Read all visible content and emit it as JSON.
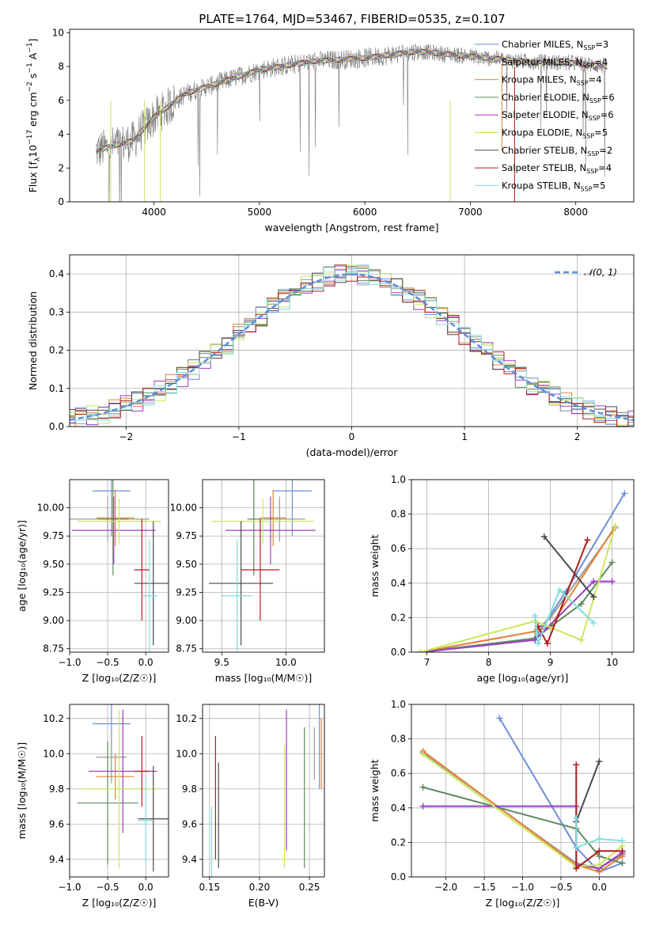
{
  "figure_title": "PLATE=1764, MJD=53467, FIBERID=0535, z=0.107",
  "models": [
    {
      "name": "Chabrier MILES",
      "nssp": "3",
      "color": "#6b8fd8"
    },
    {
      "name": "Salpeter MILES",
      "nssp": "4",
      "color": "#9b9b9b"
    },
    {
      "name": "Kroupa MILES",
      "nssp": "4",
      "color": "#e8823a"
    },
    {
      "name": "Chabrier ELODIE",
      "nssp": "6",
      "color": "#5e8a5e"
    },
    {
      "name": "Salpeter ELODIE",
      "nssp": "6",
      "color": "#9b3fc0"
    },
    {
      "name": "Kroupa ELODIE",
      "nssp": "5",
      "color": "#c9e85a"
    },
    {
      "name": "Chabrier STELIB",
      "nssp": "2",
      "color": "#4a4a4a"
    },
    {
      "name": "Salpeter STELIB",
      "nssp": "4",
      "color": "#b01d1d"
    },
    {
      "name": "Kroupa STELIB",
      "nssp": "5",
      "color": "#7fdede"
    }
  ],
  "legend_template": {
    "ssp_symbol": "N",
    "ssp_subscript": "SSP",
    "eq": "="
  },
  "chart_data": [
    {
      "id": "spectrum",
      "type": "line",
      "xlabel": "wavelength [Angstrom, rest frame]",
      "ylabel_main": "Flux [f",
      "ylabel_sub": "λ",
      "ylabel_rest": "10",
      "ylabel_exp1": "−17",
      "ylabel_mid": " erg cm",
      "ylabel_exp2": "−2",
      "ylabel_s": " s",
      "ylabel_exp3": "−1",
      "ylabel_a": " A",
      "ylabel_exp4": "−1",
      "ylabel_end": "]",
      "xlim": [
        3200,
        8550
      ],
      "ylim": [
        0,
        10.2
      ],
      "xticks": [
        "4000",
        "5000",
        "6000",
        "7000",
        "8000"
      ],
      "yticks": [
        "0",
        "2",
        "4",
        "6",
        "8",
        "10"
      ],
      "continuum": {
        "x": [
          3450,
          3600,
          3800,
          4000,
          4300,
          4700,
          5000,
          5500,
          6000,
          6500,
          7000,
          7500,
          8000,
          8300
        ],
        "y": [
          3.0,
          3.3,
          3.6,
          5.0,
          6.4,
          7.2,
          7.8,
          8.3,
          8.5,
          8.9,
          8.6,
          8.3,
          8.2,
          8.0
        ]
      }
    },
    {
      "id": "residuals",
      "type": "line",
      "xlabel": "(data-model)/error",
      "ylabel": "Normed distribution",
      "xlim": [
        -2.5,
        2.5
      ],
      "ylim": [
        0,
        0.45
      ],
      "xticks": [
        "−2",
        "−1",
        "0",
        "1",
        "2"
      ],
      "yticks": [
        "0.0",
        "0.1",
        "0.2",
        "0.3",
        "0.4"
      ],
      "grid": true,
      "reference_curve": "𝒩(0, 1)",
      "reference_color": "#5b8fd8"
    },
    {
      "id": "age-vs-Z",
      "type": "scatter",
      "xlabel": "Z [log₁₀(Z/Z☉)]",
      "ylabel": "age  [log₁₀(age/yr)]",
      "xlim": [
        -1.0,
        0.3
      ],
      "ylim": [
        8.72,
        10.25
      ],
      "xticks": [
        "−1.0",
        "−0.5",
        "0.0"
      ],
      "yticks": [
        "8.75",
        "9.00",
        "9.25",
        "9.50",
        "9.75",
        "10.00"
      ],
      "grid": true,
      "errorbars": [
        {
          "model": 0,
          "x": -0.45,
          "xerr": 0.25,
          "y": 10.15,
          "yerr": 0.4
        },
        {
          "model": 1,
          "x": -0.5,
          "xerr": 0.55,
          "y": 9.9,
          "yerr": 0.2
        },
        {
          "model": 2,
          "x": -0.4,
          "xerr": 0.25,
          "y": 9.91,
          "yerr": 0.25
        },
        {
          "model": 3,
          "x": -0.43,
          "xerr": 0.2,
          "y": 9.9,
          "yerr": 0.5
        },
        {
          "model": 4,
          "x": -0.42,
          "xerr": 0.55,
          "y": 9.8,
          "yerr": 0.3
        },
        {
          "model": 5,
          "x": -0.35,
          "xerr": 0.55,
          "y": 9.88,
          "yerr": 0.2
        },
        {
          "model": 6,
          "x": 0.1,
          "xerr": 0.25,
          "y": 9.33,
          "yerr": 0.55
        },
        {
          "model": 7,
          "x": -0.05,
          "xerr": 0.1,
          "y": 9.45,
          "yerr": 0.45
        },
        {
          "model": 8,
          "x": 0.05,
          "xerr": 0.1,
          "y": 9.22,
          "yerr": 0.5
        }
      ]
    },
    {
      "id": "age-vs-mass",
      "type": "scatter",
      "xlabel": "mass [log₁₀(M/M☉)]",
      "xlim": [
        9.35,
        10.3
      ],
      "ylim": [
        8.72,
        10.25
      ],
      "xticks": [
        "9.5",
        "10.0"
      ],
      "yticks": [
        "8.75",
        "9.00",
        "9.25",
        "9.50",
        "9.75",
        "10.00"
      ],
      "grid": true,
      "errorbars": [
        {
          "model": 0,
          "x": 10.05,
          "xerr": 0.15,
          "y": 10.15,
          "yerr": 0.4
        },
        {
          "model": 1,
          "x": 9.95,
          "xerr": 0.2,
          "y": 9.9,
          "yerr": 0.2
        },
        {
          "model": 2,
          "x": 9.9,
          "xerr": 0.1,
          "y": 9.91,
          "yerr": 0.25
        },
        {
          "model": 3,
          "x": 9.75,
          "xerr": 0.05,
          "y": 9.9,
          "yerr": 0.5
        },
        {
          "model": 4,
          "x": 9.88,
          "xerr": 0.35,
          "y": 9.8,
          "yerr": 0.3
        },
        {
          "model": 5,
          "x": 9.82,
          "xerr": 0.4,
          "y": 9.88,
          "yerr": 0.2
        },
        {
          "model": 6,
          "x": 9.65,
          "xerr": 0.25,
          "y": 9.33,
          "yerr": 0.55
        },
        {
          "model": 7,
          "x": 9.8,
          "xerr": 0.15,
          "y": 9.45,
          "yerr": 0.45
        },
        {
          "model": 8,
          "x": 9.62,
          "xerr": 0.12,
          "y": 9.22,
          "yerr": 0.5
        }
      ]
    },
    {
      "id": "weight-vs-age",
      "type": "line",
      "xlabel": "age  [log₁₀(age/yr)]",
      "ylabel": "mass weight",
      "xlim": [
        6.75,
        10.35
      ],
      "ylim": [
        0,
        1.0
      ],
      "xticks": [
        "7",
        "8",
        "9",
        "10"
      ],
      "yticks": [
        "0.0",
        "0.2",
        "0.4",
        "0.6",
        "0.8",
        "1.0"
      ],
      "grid": true,
      "series": [
        {
          "model": 0,
          "x": [
            6.9,
            8.75,
            9.25,
            10.2
          ],
          "y": [
            0.0,
            0.08,
            0.35,
            0.92
          ]
        },
        {
          "model": 1,
          "x": [
            6.9,
            8.75,
            9.0,
            10.05
          ],
          "y": [
            0.0,
            0.12,
            0.2,
            0.72
          ]
        },
        {
          "model": 2,
          "x": [
            6.9,
            8.75,
            9.0,
            10.05
          ],
          "y": [
            0.0,
            0.12,
            0.15,
            0.73
          ]
        },
        {
          "model": 3,
          "x": [
            6.9,
            8.75,
            9.5,
            10.0
          ],
          "y": [
            0.0,
            0.08,
            0.28,
            0.52
          ]
        },
        {
          "model": 4,
          "x": [
            6.9,
            8.75,
            9.7,
            10.0
          ],
          "y": [
            0.0,
            0.07,
            0.41,
            0.41
          ]
        },
        {
          "model": 5,
          "x": [
            6.9,
            8.75,
            9.5,
            10.05
          ],
          "y": [
            0.0,
            0.18,
            0.07,
            0.73
          ]
        },
        {
          "model": 6,
          "x": [
            8.9,
            9.7
          ],
          "y": [
            0.67,
            0.32
          ]
        },
        {
          "model": 7,
          "x": [
            8.8,
            8.95,
            9.6
          ],
          "y": [
            0.15,
            0.05,
            0.65
          ]
        },
        {
          "model": 8,
          "x": [
            8.75,
            8.8,
            9.15,
            9.7
          ],
          "y": [
            0.21,
            0.05,
            0.36,
            0.17
          ]
        }
      ]
    },
    {
      "id": "mass-vs-Z",
      "type": "scatter",
      "xlabel": "Z [log₁₀(Z/Z☉)]",
      "ylabel": "mass [log₁₀(M/M☉)]",
      "xlim": [
        -1.0,
        0.3
      ],
      "ylim": [
        9.3,
        10.28
      ],
      "xticks": [
        "−1.0",
        "−0.5",
        "0.0"
      ],
      "yticks": [
        "9.4",
        "9.6",
        "9.8",
        "10.0",
        "10.2"
      ],
      "grid": true,
      "errorbars": [
        {
          "model": 0,
          "x": -0.45,
          "xerr": 0.25,
          "y": 10.17,
          "yerr": 0.3
        },
        {
          "model": 1,
          "x": -0.45,
          "xerr": 0.2,
          "y": 9.98,
          "yerr": 0.15
        },
        {
          "model": 2,
          "x": -0.4,
          "xerr": 0.25,
          "y": 9.87,
          "yerr": 0.13
        },
        {
          "model": 3,
          "x": -0.5,
          "xerr": 0.4,
          "y": 9.72,
          "yerr": 0.35
        },
        {
          "model": 4,
          "x": -0.3,
          "xerr": 0.45,
          "y": 9.9,
          "yerr": 0.35
        },
        {
          "model": 5,
          "x": -0.35,
          "xerr": 0.5,
          "y": 9.8,
          "yerr": 0.45
        },
        {
          "model": 6,
          "x": 0.1,
          "xerr": 0.2,
          "y": 9.63,
          "yerr": 0.3
        },
        {
          "model": 7,
          "x": -0.05,
          "xerr": 0.1,
          "y": 9.9,
          "yerr": 0.2
        },
        {
          "model": 8,
          "x": 0.0,
          "xerr": 0.1,
          "y": 9.62,
          "yerr": 0.25
        }
      ]
    },
    {
      "id": "mass-vs-EBV",
      "type": "scatter",
      "xlabel": "E(B-V)",
      "xlim": [
        0.143,
        0.265
      ],
      "ylim": [
        9.3,
        10.28
      ],
      "xticks": [
        "0.15",
        "0.20",
        "0.25"
      ],
      "yticks": [
        "9.4",
        "9.6",
        "9.8",
        "10.0",
        "10.2"
      ],
      "grid": true,
      "errorbars": [
        {
          "model": 0,
          "x": 0.26,
          "y": 10.05,
          "yerr": 0.25
        },
        {
          "model": 1,
          "x": 0.255,
          "y": 10.0,
          "yerr": 0.15
        },
        {
          "model": 2,
          "x": 0.262,
          "y": 10.0,
          "yerr": 0.2
        },
        {
          "model": 3,
          "x": 0.245,
          "y": 9.75,
          "yerr": 0.4
        },
        {
          "model": 4,
          "x": 0.227,
          "y": 9.85,
          "yerr": 0.4
        },
        {
          "model": 5,
          "x": 0.225,
          "y": 9.7,
          "yerr": 0.35
        },
        {
          "model": 6,
          "x": 0.159,
          "y": 9.65,
          "yerr": 0.3
        },
        {
          "model": 7,
          "x": 0.156,
          "y": 9.75,
          "yerr": 0.35
        },
        {
          "model": 8,
          "x": 0.152,
          "y": 9.5,
          "yerr": 0.2
        }
      ]
    },
    {
      "id": "weight-vs-Z",
      "type": "line",
      "xlabel": "Z [log₁₀(Z/Z☉)]",
      "ylabel": "mass weight",
      "xlim": [
        -2.45,
        0.45
      ],
      "ylim": [
        0,
        1.0
      ],
      "xticks": [
        "−2.0",
        "−1.5",
        "−1.0",
        "−0.5",
        "0.0"
      ],
      "yticks": [
        "0.0",
        "0.2",
        "0.4",
        "0.6",
        "0.8",
        "1.0"
      ],
      "grid": true,
      "series": [
        {
          "model": 0,
          "x": [
            -1.3,
            -0.3,
            0.0,
            0.3
          ],
          "y": [
            0.92,
            0.17,
            0.03,
            0.08
          ]
        },
        {
          "model": 1,
          "x": [
            -2.3,
            -0.3,
            0.0,
            0.3
          ],
          "y": [
            0.72,
            0.08,
            0.05,
            0.13
          ]
        },
        {
          "model": 2,
          "x": [
            -2.3,
            -0.3,
            0.0,
            0.3
          ],
          "y": [
            0.73,
            0.07,
            0.03,
            0.12
          ]
        },
        {
          "model": 3,
          "x": [
            -2.3,
            -0.3,
            0.0,
            0.3
          ],
          "y": [
            0.52,
            0.28,
            0.12,
            0.08
          ]
        },
        {
          "model": 4,
          "x": [
            -2.3,
            -0.3,
            -0.3,
            0.0,
            0.3
          ],
          "y": [
            0.41,
            0.41,
            0.07,
            0.05,
            0.14
          ]
        },
        {
          "model": 5,
          "x": [
            -2.3,
            -0.3,
            0.0,
            0.3
          ],
          "y": [
            0.71,
            0.06,
            0.07,
            0.18
          ]
        },
        {
          "model": 6,
          "x": [
            -0.3,
            0.0
          ],
          "y": [
            0.32,
            0.67
          ]
        },
        {
          "model": 7,
          "x": [
            -0.3,
            -0.3,
            0.0,
            0.3
          ],
          "y": [
            0.65,
            0.05,
            0.15,
            0.15
          ]
        },
        {
          "model": 8,
          "x": [
            -0.3,
            -0.3,
            0.0,
            0.3
          ],
          "y": [
            0.34,
            0.17,
            0.22,
            0.21
          ]
        }
      ]
    }
  ]
}
